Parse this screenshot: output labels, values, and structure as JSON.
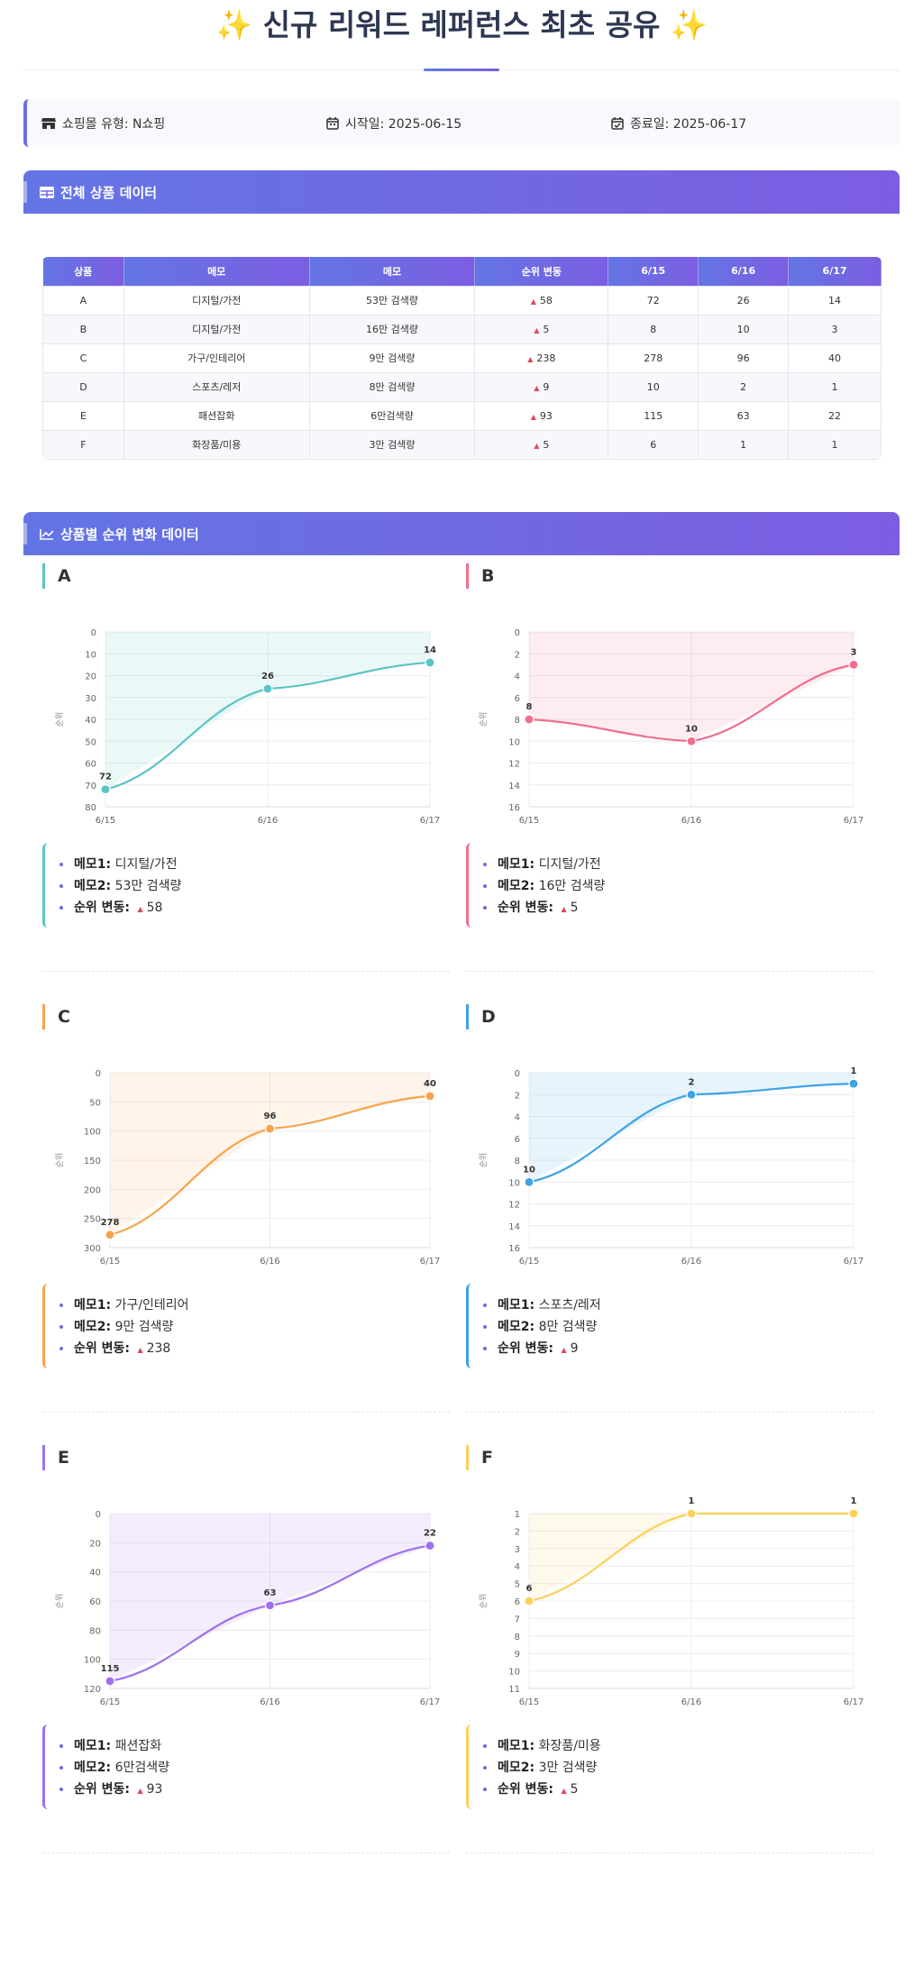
{
  "page": {
    "title": "✨ 신규 리워드 레퍼런스 최초 공유 ✨"
  },
  "info": {
    "mall_type": "쇼핑몰 유형: N쇼핑",
    "start_date": "시작일: 2025-06-15",
    "end_date": "종료일: 2025-06-17"
  },
  "sections": {
    "table_title": "전체 상품 데이터",
    "charts_title": "상품별 순위 변화 데이터"
  },
  "table": {
    "headers": [
      "상품",
      "메모",
      "메모",
      "순위 변동",
      "6/15",
      "6/16",
      "6/17"
    ],
    "rows": [
      [
        "A",
        "디지털/가전",
        "53만 검색량",
        "58",
        "72",
        "26",
        "14"
      ],
      [
        "B",
        "디지털/가전",
        "16만 검색량",
        "5",
        "8",
        "10",
        "3"
      ],
      [
        "C",
        "가구/인테리어",
        "9만 검색량",
        "238",
        "278",
        "96",
        "40"
      ],
      [
        "D",
        "스포츠/레저",
        "8만 검색량",
        "9",
        "10",
        "2",
        "1"
      ],
      [
        "E",
        "패션잡화",
        "6만검색량",
        "93",
        "115",
        "63",
        "22"
      ],
      [
        "F",
        "화장품/미용",
        "3만 검색량",
        "5",
        "6",
        "1",
        "1"
      ]
    ]
  },
  "labels": {
    "memo1": "메모1:",
    "memo2": "메모2:",
    "rank_change": "순위 변동:"
  },
  "chart_data": [
    {
      "type": "line",
      "title": "A",
      "color": "#5bc4c5",
      "x": [
        "6/15",
        "6/16",
        "6/17"
      ],
      "values": [
        72,
        26,
        14
      ],
      "ylabel": "순위",
      "ylim": [
        0,
        80
      ],
      "yticks": [
        0,
        10,
        20,
        30,
        40,
        50,
        60,
        70,
        80
      ],
      "reversed": true,
      "memo1": "디지털/가전",
      "memo2": "53만 검색량",
      "change": "58"
    },
    {
      "type": "line",
      "title": "B",
      "color": "#f06f8e",
      "x": [
        "6/15",
        "6/16",
        "6/17"
      ],
      "values": [
        8,
        10,
        3
      ],
      "ylabel": "순위",
      "ylim": [
        0,
        16
      ],
      "yticks": [
        0,
        2,
        4,
        6,
        8,
        10,
        12,
        14,
        16
      ],
      "reversed": true,
      "memo1": "디지털/가전",
      "memo2": "16만 검색량",
      "change": "5"
    },
    {
      "type": "line",
      "title": "C",
      "color": "#f8a34b",
      "x": [
        "6/15",
        "6/16",
        "6/17"
      ],
      "values": [
        278,
        96,
        40
      ],
      "ylabel": "순위",
      "ylim": [
        0,
        300
      ],
      "yticks": [
        0,
        50,
        100,
        150,
        200,
        250,
        300
      ],
      "reversed": true,
      "memo1": "가구/인테리어",
      "memo2": "9만 검색량",
      "change": "238"
    },
    {
      "type": "line",
      "title": "D",
      "color": "#3ea3e6",
      "x": [
        "6/15",
        "6/16",
        "6/17"
      ],
      "values": [
        10,
        2,
        1
      ],
      "ylabel": "순위",
      "ylim": [
        0,
        16
      ],
      "yticks": [
        0,
        2,
        4,
        6,
        8,
        10,
        12,
        14,
        16
      ],
      "reversed": true,
      "memo1": "스포츠/레저",
      "memo2": "8만 검색량",
      "change": "9"
    },
    {
      "type": "line",
      "title": "E",
      "color": "#9f6fef",
      "x": [
        "6/15",
        "6/16",
        "6/17"
      ],
      "values": [
        115,
        63,
        22
      ],
      "ylabel": "순위",
      "ylim": [
        0,
        120
      ],
      "yticks": [
        0,
        20,
        40,
        60,
        80,
        100,
        120
      ],
      "reversed": true,
      "memo1": "패션잡화",
      "memo2": "6만검색량",
      "change": "93"
    },
    {
      "type": "line",
      "title": "F",
      "color": "#fdd05c",
      "x": [
        "6/15",
        "6/16",
        "6/17"
      ],
      "values": [
        6,
        1,
        1
      ],
      "ylabel": "순위",
      "ylim": [
        1,
        11
      ],
      "yticks": [
        1,
        2,
        3,
        4,
        5,
        6,
        7,
        8,
        9,
        10,
        11
      ],
      "reversed": true,
      "memo1": "화장품/미용",
      "memo2": "3만 검색량",
      "change": "5"
    }
  ],
  "icons": {
    "store": "store-icon",
    "calendar": "calendar-icon",
    "calendar_check": "calendar-check-icon",
    "table": "table-icon",
    "chart": "chart-line-icon",
    "up": "triangle-up-icon"
  }
}
